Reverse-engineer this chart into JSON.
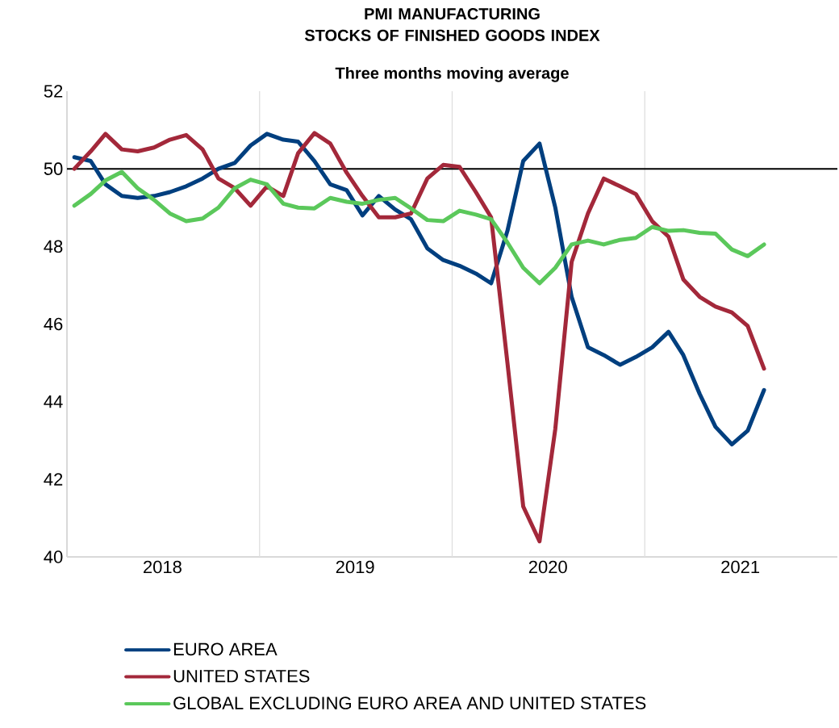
{
  "chart_data": {
    "type": "line",
    "title": "PMI MANUFACTURING STOCKS OF FINISHED GOODS INDEX",
    "subtitle": "Three months moving average",
    "x": [
      "2018-01-15",
      "2018-02-15",
      "2018-03-15",
      "2018-04-15",
      "2018-05-15",
      "2018-06-15",
      "2018-07-15",
      "2018-08-15",
      "2018-09-15",
      "2018-10-15",
      "2018-11-15",
      "2018-12-15",
      "2019-01-15",
      "2019-02-15",
      "2019-03-15",
      "2019-04-15",
      "2019-05-15",
      "2019-06-15",
      "2019-07-15",
      "2019-08-15",
      "2019-09-15",
      "2019-10-15",
      "2019-11-15",
      "2019-12-15",
      "2020-01-15",
      "2020-02-15",
      "2020-03-15",
      "2020-04-15",
      "2020-05-15",
      "2020-06-15",
      "2020-07-15",
      "2020-08-15",
      "2020-09-15",
      "2020-10-15",
      "2020-11-15",
      "2020-12-15",
      "2021-01-15",
      "2021-02-15",
      "2021-03-15",
      "2021-04-15",
      "2021-05-15",
      "2021-06-15",
      "2021-07-15",
      "2021-08-15"
    ],
    "series": [
      {
        "name": "EURO AREA",
        "color": "#003f7f",
        "values": [
          50.3,
          50.2,
          49.6,
          49.3,
          49.25,
          49.3,
          49.4,
          49.55,
          49.75,
          50.0,
          50.15,
          50.6,
          50.9,
          50.75,
          50.7,
          50.2,
          49.6,
          49.45,
          48.8,
          49.3,
          48.95,
          48.7,
          47.95,
          47.65,
          47.5,
          47.3,
          47.05,
          48.4,
          50.2,
          50.65,
          49.0,
          46.7,
          45.4,
          45.2,
          44.95,
          45.15,
          45.4,
          45.8,
          45.2,
          44.2,
          43.35,
          42.9,
          43.25,
          44.3
        ]
      },
      {
        "name": "UNITED STATES",
        "color": "#a3283a",
        "values": [
          50.0,
          50.45,
          50.9,
          50.5,
          50.45,
          50.55,
          50.75,
          50.87,
          50.5,
          49.75,
          49.5,
          49.05,
          49.55,
          49.3,
          50.4,
          50.92,
          50.65,
          49.9,
          49.3,
          48.75,
          48.75,
          48.85,
          49.75,
          50.1,
          50.05,
          49.4,
          48.75,
          45.0,
          41.3,
          40.4,
          43.3,
          47.6,
          48.85,
          49.75,
          49.55,
          49.35,
          48.65,
          48.25,
          47.15,
          46.7,
          46.45,
          46.3,
          45.95,
          44.85
        ]
      },
      {
        "name": "GLOBAL EXCLUDING EURO AREA AND UNITED STATES",
        "color": "#5bc85b",
        "values": [
          49.05,
          49.35,
          49.7,
          49.92,
          49.5,
          49.2,
          48.85,
          48.65,
          48.72,
          49.0,
          49.5,
          49.72,
          49.6,
          49.1,
          49.0,
          48.98,
          49.25,
          49.15,
          49.1,
          49.2,
          49.25,
          48.98,
          48.68,
          48.65,
          48.92,
          48.82,
          48.7,
          48.1,
          47.45,
          47.05,
          47.45,
          48.05,
          48.15,
          48.05,
          48.17,
          48.22,
          48.5,
          48.4,
          48.42,
          48.35,
          48.33,
          47.92,
          47.75,
          48.05
        ]
      }
    ],
    "xlim": [
      "2018-01-01",
      "2022-01-01"
    ],
    "xticks": [
      {
        "value": "2018-07-01",
        "label": "2018"
      },
      {
        "value": "2019-07-01",
        "label": "2019"
      },
      {
        "value": "2020-07-01",
        "label": "2020"
      },
      {
        "value": "2021-07-01",
        "label": "2021"
      },
      {
        "value": "2019-01-01",
        "label": null
      },
      {
        "value": "2020-01-01",
        "label": null
      },
      {
        "value": "2021-01-01",
        "label": null
      }
    ],
    "ylim": [
      40,
      52
    ],
    "yticks": [
      40,
      42,
      44,
      46,
      48,
      50,
      52
    ],
    "ref_lines": [
      {
        "axis": "y",
        "value": 50,
        "color": "#000000"
      }
    ],
    "grid": "x",
    "legend": "bottom",
    "marker": "none",
    "line_style": "solid"
  }
}
